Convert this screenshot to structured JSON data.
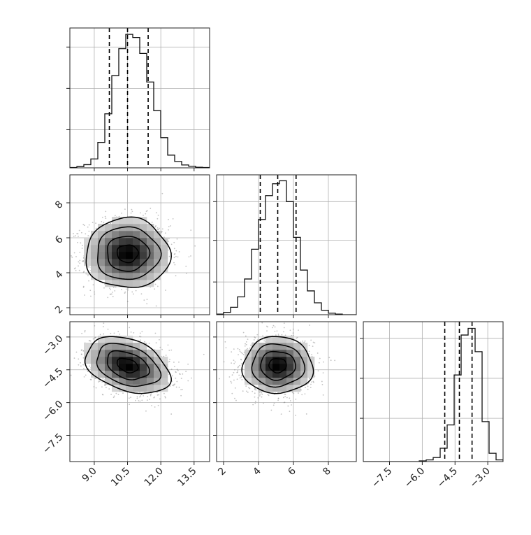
{
  "chart_data": {
    "type": "corner",
    "grid": true,
    "parameters": [
      {
        "range": [
          7.9,
          14.2
        ],
        "ticks": [
          9.0,
          10.5,
          12.0,
          13.5
        ],
        "tick_labels": [
          "9.0",
          "10.5",
          "12.0",
          "13.5"
        ],
        "quantiles": [
          9.68,
          10.5,
          11.43
        ],
        "mean": 10.5,
        "std": 0.95
      },
      {
        "range": [
          1.6,
          9.6
        ],
        "ticks": [
          2,
          4,
          6,
          8
        ],
        "tick_labels": [
          "2",
          "4",
          "6",
          "8"
        ],
        "quantiles": [
          4.1,
          5.1,
          6.15
        ],
        "mean": 5.1,
        "std": 1.0
      },
      {
        "range": [
          -8.7,
          -2.3
        ],
        "ticks": [
          -7.5,
          -6.0,
          -4.5,
          -3.0
        ],
        "tick_labels": [
          "−7.5",
          "−6.0",
          "−4.5",
          "−3.0"
        ],
        "quantiles": [
          -4.97,
          -4.3,
          -3.72
        ],
        "mean": -4.3,
        "std": 0.65
      }
    ],
    "histograms": [
      {
        "param": 0,
        "bin_start": 7.9,
        "bin_width": 0.315,
        "counts": [
          1,
          4,
          10,
          28,
          80,
          170,
          290,
          375,
          420,
          410,
          360,
          270,
          180,
          95,
          40,
          20,
          9,
          5,
          2,
          1
        ],
        "ylim": [
          0,
          440
        ],
        "yticks": [
          120,
          250,
          380
        ]
      },
      {
        "param": 1,
        "bin_start": 1.6,
        "bin_width": 0.4,
        "counts": [
          2,
          8,
          25,
          60,
          120,
          220,
          320,
          400,
          440,
          450,
          380,
          260,
          150,
          80,
          40,
          15,
          5,
          2,
          0,
          0
        ],
        "ylim": [
          0,
          470
        ],
        "yticks": [
          110,
          250,
          380
        ]
      },
      {
        "param": 2,
        "bin_start": -8.7,
        "bin_width": 0.32,
        "counts": [
          0,
          0,
          0,
          0,
          0,
          0,
          0,
          0,
          2,
          5,
          12,
          40,
          110,
          260,
          380,
          400,
          330,
          120,
          25,
          5
        ],
        "ylim": [
          0,
          420
        ],
        "yticks": [
          130,
          250,
          370
        ]
      }
    ],
    "panels_2d": [
      {
        "x_param": 0,
        "y_param": 1,
        "center": [
          10.5,
          5.1
        ],
        "correlation": 0.0
      },
      {
        "x_param": 0,
        "y_param": 2,
        "center": [
          10.5,
          -4.3
        ],
        "correlation": -0.35
      },
      {
        "x_param": 1,
        "y_param": 2,
        "center": [
          5.1,
          -4.3
        ],
        "correlation": 0.0
      }
    ],
    "contour_levels_sigma": [
      0.5,
      1.0,
      1.5,
      2.0
    ]
  }
}
